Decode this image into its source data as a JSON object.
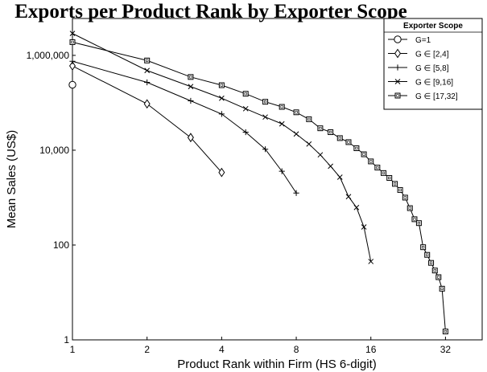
{
  "chart_data": {
    "type": "line",
    "title": "Exports per Product Rank by Exporter Scope",
    "xlabel": "Product Rank within Firm (HS 6-digit)",
    "ylabel": "Mean Sales (US$)",
    "x_scale": "log2",
    "y_scale": "log10",
    "xlim": [
      1,
      45
    ],
    "ylim": [
      1,
      6000000
    ],
    "x_ticks": [
      1,
      2,
      4,
      8,
      16,
      32
    ],
    "x_tick_labels": [
      "1",
      "2",
      "4",
      "8",
      "16",
      "32"
    ],
    "y_ticks": [
      1,
      100,
      10000,
      1000000
    ],
    "y_tick_labels": [
      "1",
      "100",
      "10,000",
      "1,000,000"
    ],
    "grid": false,
    "legend": {
      "title": "Exporter Scope",
      "placement": "top-right"
    },
    "series": [
      {
        "name": "G=1",
        "marker": "circle",
        "x": [
          1
        ],
        "y": [
          240000
        ]
      },
      {
        "name": "G ∈ [2,4]",
        "marker": "diamond",
        "x": [
          1,
          2,
          3,
          4
        ],
        "y": [
          600000,
          95000,
          18500,
          3400
        ]
      },
      {
        "name": "G ∈ [5,8]",
        "marker": "plus",
        "x": [
          1,
          2,
          3,
          4,
          5,
          6,
          7,
          8
        ],
        "y": [
          750000,
          270000,
          110000,
          58000,
          24000,
          10500,
          3600,
          1250
        ]
      },
      {
        "name": "G ∈ [9,16]",
        "marker": "x",
        "x": [
          1,
          2,
          3,
          4,
          5,
          6,
          7,
          8,
          9,
          10,
          11,
          12,
          13,
          14,
          15,
          16
        ],
        "y": [
          2900000,
          480000,
          220000,
          125000,
          75000,
          50000,
          36000,
          22000,
          13500,
          8000,
          4600,
          2700,
          1050,
          620,
          240,
          45
        ]
      },
      {
        "name": "G ∈ [17,32]",
        "marker": "square",
        "x": [
          1,
          2,
          3,
          4,
          5,
          6,
          7,
          8,
          9,
          10,
          11,
          12,
          13,
          14,
          15,
          16,
          17,
          18,
          19,
          20,
          21,
          22,
          23,
          24,
          25,
          26,
          27,
          28,
          29,
          30,
          31,
          32
        ],
        "y": [
          1900000,
          780000,
          350000,
          235000,
          155000,
          105000,
          82000,
          63000,
          45000,
          29000,
          24000,
          18000,
          14800,
          11000,
          8200,
          5800,
          4300,
          3300,
          2600,
          1950,
          1450,
          1000,
          600,
          350,
          290,
          90,
          62,
          42,
          29,
          21,
          12,
          1.5
        ]
      }
    ]
  }
}
